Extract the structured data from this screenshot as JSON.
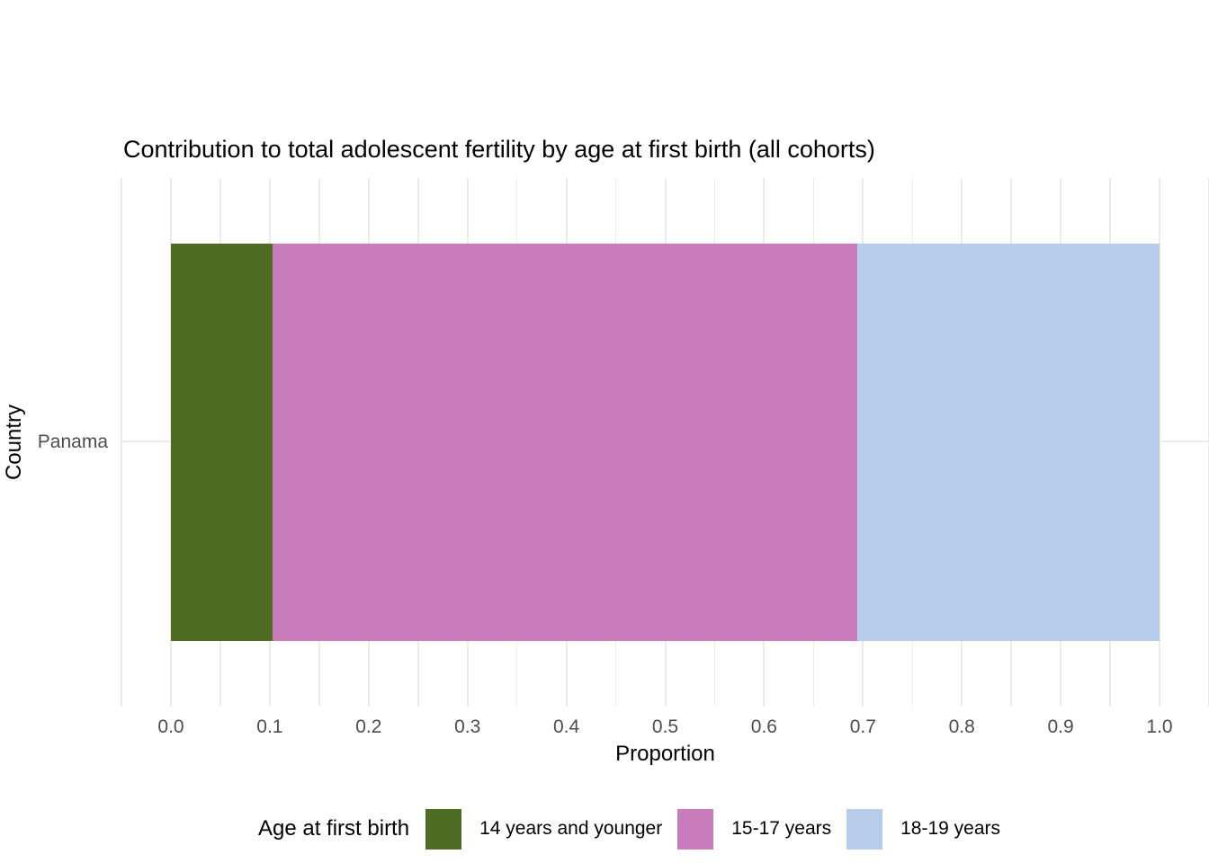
{
  "title": "Contribution to total adolescent fertility by age at first birth (all cohorts)",
  "chart_data": {
    "type": "bar",
    "orientation": "horizontal",
    "stacked": true,
    "title": "Contribution to total adolescent fertility by age at first birth (all cohorts)",
    "xlabel": "Proportion",
    "ylabel": "Country",
    "categories": [
      "Panama"
    ],
    "series": [
      {
        "name": "14 years and younger",
        "color": "#4E6B23",
        "values": [
          0.103
        ]
      },
      {
        "name": "15-17 years",
        "color": "#C97CBC",
        "values": [
          0.591
        ]
      },
      {
        "name": "18-19 years",
        "color": "#B5CDEB",
        "values": [
          0.306
        ]
      }
    ],
    "xlim": [
      0.0,
      1.0
    ],
    "x_ticks": [
      "0.0",
      "0.1",
      "0.2",
      "0.3",
      "0.4",
      "0.5",
      "0.6",
      "0.7",
      "0.8",
      "0.9",
      "1.0"
    ],
    "grid": true,
    "gridline_color": "#EBEBEB",
    "tick_label_color": "#4D4D4D",
    "legend": {
      "title": "Age at first birth",
      "position": "bottom"
    }
  }
}
